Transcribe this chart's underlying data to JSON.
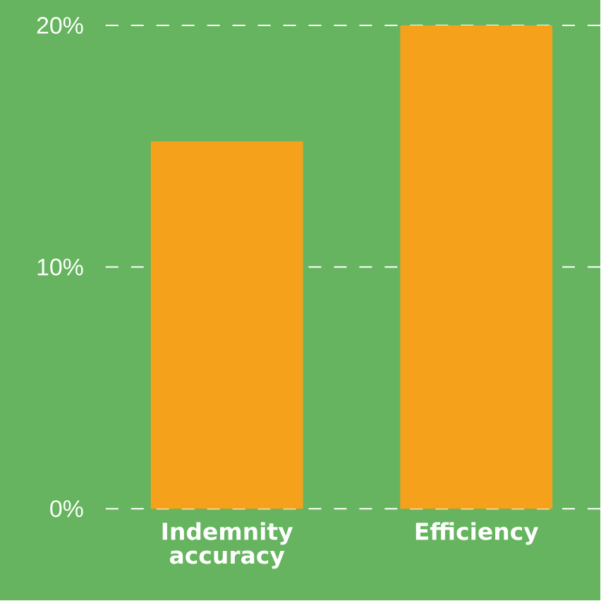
{
  "chart_data": {
    "type": "bar",
    "categories": [
      "Indemnity accuracy",
      "Efficiency"
    ],
    "values": [
      15.2,
      20
    ],
    "color": "#f5a11c",
    "ylim": [
      0,
      20
    ],
    "yticks": [
      {
        "value": 0,
        "label": "0%"
      },
      {
        "value": 10,
        "label": "10%"
      },
      {
        "value": 20,
        "label": "20%"
      }
    ],
    "grid": "y"
  }
}
